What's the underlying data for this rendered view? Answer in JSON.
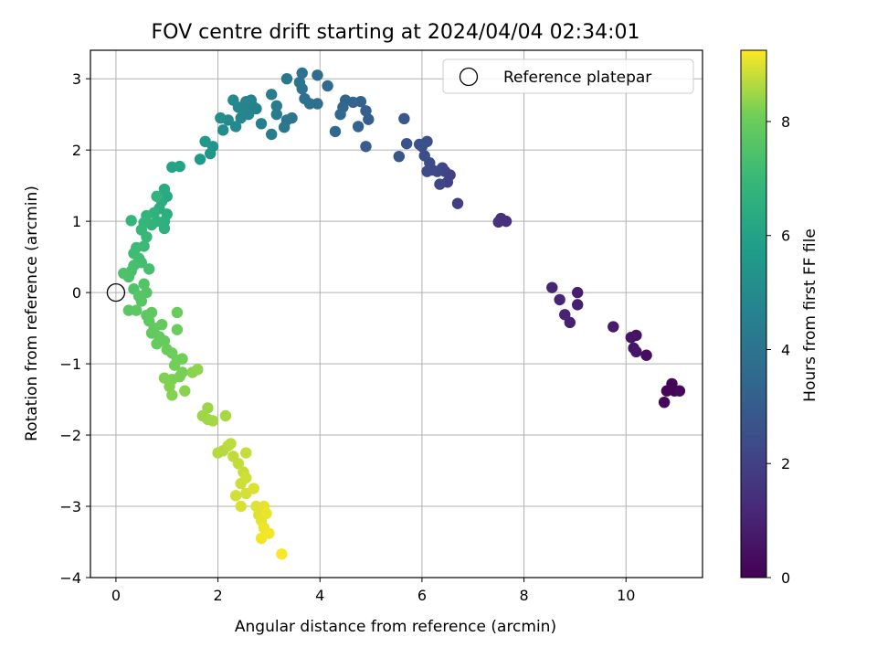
{
  "chart_data": {
    "type": "scatter",
    "title": "FOV centre drift starting at 2024/04/04 02:34:01",
    "xlabel": "Angular distance from reference (arcmin)",
    "ylabel": "Rotation from reference (arcmin)",
    "xlim": [
      -0.5,
      11.5
    ],
    "ylim": [
      -4.0,
      3.4
    ],
    "xticks": [
      0,
      2,
      4,
      6,
      8,
      10
    ],
    "yticks": [
      -4,
      -3,
      -2,
      -1,
      0,
      1,
      2,
      3
    ],
    "grid": true,
    "legend": {
      "position": "top-right",
      "entries": [
        "Reference platepar"
      ]
    },
    "reference_point": {
      "x": 0,
      "y": 0,
      "label": "Reference platepar"
    },
    "colorbar": {
      "label": "Hours from first FF file",
      "range": [
        0,
        9.25
      ],
      "ticks": [
        0,
        2,
        4,
        6,
        8
      ],
      "colormap": "viridis"
    },
    "points": [
      {
        "x": 10.95,
        "y": -1.38,
        "h": 0.05
      },
      {
        "x": 10.9,
        "y": -1.28,
        "h": 0.1
      },
      {
        "x": 10.8,
        "y": -1.38,
        "h": 0.15
      },
      {
        "x": 10.75,
        "y": -1.54,
        "h": 0.2
      },
      {
        "x": 11.05,
        "y": -1.38,
        "h": 0.25
      },
      {
        "x": 10.4,
        "y": -0.88,
        "h": 0.4
      },
      {
        "x": 10.2,
        "y": -0.6,
        "h": 0.5
      },
      {
        "x": 10.15,
        "y": -0.78,
        "h": 0.55
      },
      {
        "x": 10.1,
        "y": -0.63,
        "h": 0.6
      },
      {
        "x": 10.2,
        "y": -0.83,
        "h": 0.65
      },
      {
        "x": 9.75,
        "y": -0.48,
        "h": 0.75
      },
      {
        "x": 9.05,
        "y": 0.0,
        "h": 0.85
      },
      {
        "x": 9.05,
        "y": -0.17,
        "h": 0.9
      },
      {
        "x": 8.9,
        "y": -0.42,
        "h": 0.95
      },
      {
        "x": 8.8,
        "y": -0.31,
        "h": 1.0
      },
      {
        "x": 8.7,
        "y": -0.1,
        "h": 1.05
      },
      {
        "x": 8.55,
        "y": 0.07,
        "h": 1.1
      },
      {
        "x": 7.65,
        "y": 1.0,
        "h": 1.4
      },
      {
        "x": 7.55,
        "y": 1.04,
        "h": 1.45
      },
      {
        "x": 7.5,
        "y": 0.99,
        "h": 1.5
      },
      {
        "x": 6.7,
        "y": 1.25,
        "h": 1.9
      },
      {
        "x": 6.55,
        "y": 1.65,
        "h": 2.0
      },
      {
        "x": 6.5,
        "y": 1.55,
        "h": 2.05
      },
      {
        "x": 6.45,
        "y": 1.7,
        "h": 2.1
      },
      {
        "x": 6.4,
        "y": 1.75,
        "h": 2.15
      },
      {
        "x": 6.35,
        "y": 1.52,
        "h": 2.2
      },
      {
        "x": 6.3,
        "y": 1.7,
        "h": 2.25
      },
      {
        "x": 6.2,
        "y": 1.72,
        "h": 2.3
      },
      {
        "x": 6.1,
        "y": 1.7,
        "h": 2.35
      },
      {
        "x": 6.15,
        "y": 1.82,
        "h": 2.4
      },
      {
        "x": 6.05,
        "y": 1.92,
        "h": 2.45
      },
      {
        "x": 6.1,
        "y": 2.12,
        "h": 2.5
      },
      {
        "x": 6.0,
        "y": 2.05,
        "h": 2.55
      },
      {
        "x": 5.95,
        "y": 2.08,
        "h": 2.6
      },
      {
        "x": 5.7,
        "y": 2.09,
        "h": 2.7
      },
      {
        "x": 5.55,
        "y": 1.91,
        "h": 2.75
      },
      {
        "x": 5.65,
        "y": 2.44,
        "h": 2.8
      },
      {
        "x": 4.9,
        "y": 2.05,
        "h": 3.05
      },
      {
        "x": 4.95,
        "y": 2.43,
        "h": 3.1
      },
      {
        "x": 4.9,
        "y": 2.55,
        "h": 3.15
      },
      {
        "x": 4.8,
        "y": 2.68,
        "h": 3.2
      },
      {
        "x": 4.75,
        "y": 2.33,
        "h": 3.25
      },
      {
        "x": 4.65,
        "y": 2.67,
        "h": 3.3
      },
      {
        "x": 4.5,
        "y": 2.7,
        "h": 3.35
      },
      {
        "x": 4.45,
        "y": 2.6,
        "h": 3.4
      },
      {
        "x": 4.4,
        "y": 2.5,
        "h": 3.45
      },
      {
        "x": 4.3,
        "y": 2.26,
        "h": 3.5
      },
      {
        "x": 4.15,
        "y": 2.9,
        "h": 3.6
      },
      {
        "x": 3.95,
        "y": 3.05,
        "h": 3.7
      },
      {
        "x": 3.95,
        "y": 2.65,
        "h": 3.75
      },
      {
        "x": 3.8,
        "y": 2.65,
        "h": 3.8
      },
      {
        "x": 3.7,
        "y": 2.72,
        "h": 3.85
      },
      {
        "x": 3.65,
        "y": 2.86,
        "h": 3.9
      },
      {
        "x": 3.65,
        "y": 3.08,
        "h": 3.95
      },
      {
        "x": 3.6,
        "y": 2.95,
        "h": 4.0
      },
      {
        "x": 3.45,
        "y": 2.45,
        "h": 4.05
      },
      {
        "x": 3.35,
        "y": 2.42,
        "h": 4.1
      },
      {
        "x": 3.3,
        "y": 2.32,
        "h": 4.15
      },
      {
        "x": 3.35,
        "y": 3.0,
        "h": 4.2
      },
      {
        "x": 3.15,
        "y": 2.5,
        "h": 4.3
      },
      {
        "x": 3.15,
        "y": 2.62,
        "h": 4.35
      },
      {
        "x": 3.05,
        "y": 2.78,
        "h": 4.4
      },
      {
        "x": 3.05,
        "y": 2.22,
        "h": 4.45
      },
      {
        "x": 2.85,
        "y": 2.37,
        "h": 4.55
      },
      {
        "x": 2.7,
        "y": 2.6,
        "h": 4.6
      },
      {
        "x": 2.65,
        "y": 2.7,
        "h": 4.65
      },
      {
        "x": 2.6,
        "y": 2.5,
        "h": 4.7
      },
      {
        "x": 2.5,
        "y": 2.58,
        "h": 4.75
      },
      {
        "x": 2.45,
        "y": 2.45,
        "h": 4.8
      },
      {
        "x": 2.4,
        "y": 2.6,
        "h": 4.85
      },
      {
        "x": 2.35,
        "y": 2.33,
        "h": 4.9
      },
      {
        "x": 2.3,
        "y": 2.7,
        "h": 4.95
      },
      {
        "x": 2.2,
        "y": 2.42,
        "h": 5.0
      },
      {
        "x": 2.1,
        "y": 2.28,
        "h": 5.05
      },
      {
        "x": 2.05,
        "y": 2.45,
        "h": 5.1
      },
      {
        "x": 2.75,
        "y": 2.58,
        "h": 4.58
      },
      {
        "x": 2.55,
        "y": 2.68,
        "h": 4.72
      },
      {
        "x": 1.9,
        "y": 2.05,
        "h": 5.4
      },
      {
        "x": 1.85,
        "y": 1.95,
        "h": 5.5
      },
      {
        "x": 1.75,
        "y": 2.12,
        "h": 5.55
      },
      {
        "x": 1.65,
        "y": 1.87,
        "h": 5.6
      },
      {
        "x": 1.25,
        "y": 1.77,
        "h": 6.0
      },
      {
        "x": 1.1,
        "y": 1.76,
        "h": 6.05
      },
      {
        "x": 1.0,
        "y": 1.35,
        "h": 6.3
      },
      {
        "x": 0.95,
        "y": 1.45,
        "h": 6.35
      },
      {
        "x": 0.9,
        "y": 1.28,
        "h": 6.4
      },
      {
        "x": 0.85,
        "y": 1.18,
        "h": 6.45
      },
      {
        "x": 1.0,
        "y": 1.1,
        "h": 6.5
      },
      {
        "x": 0.95,
        "y": 1.0,
        "h": 6.55
      },
      {
        "x": 0.95,
        "y": 0.9,
        "h": 6.6
      },
      {
        "x": 0.8,
        "y": 1.0,
        "h": 6.65
      },
      {
        "x": 0.75,
        "y": 1.12,
        "h": 6.7
      },
      {
        "x": 0.7,
        "y": 0.95,
        "h": 6.75
      },
      {
        "x": 0.8,
        "y": 1.35,
        "h": 6.8
      },
      {
        "x": 0.6,
        "y": 1.08,
        "h": 6.85
      },
      {
        "x": 0.55,
        "y": 0.98,
        "h": 6.9
      },
      {
        "x": 0.5,
        "y": 0.88,
        "h": 6.95
      },
      {
        "x": 0.6,
        "y": 0.78,
        "h": 7.0
      },
      {
        "x": 0.55,
        "y": 0.65,
        "h": 7.05
      },
      {
        "x": 0.4,
        "y": 0.63,
        "h": 7.1
      },
      {
        "x": 0.35,
        "y": 0.55,
        "h": 7.15
      },
      {
        "x": 0.45,
        "y": 0.48,
        "h": 7.2
      },
      {
        "x": 0.5,
        "y": 0.42,
        "h": 7.25
      },
      {
        "x": 0.35,
        "y": 0.38,
        "h": 7.3
      },
      {
        "x": 0.3,
        "y": 0.3,
        "h": 7.35
      },
      {
        "x": 0.25,
        "y": 0.22,
        "h": 7.4
      },
      {
        "x": 0.15,
        "y": 0.27,
        "h": 7.45
      },
      {
        "x": 0.3,
        "y": 1.01,
        "h": 6.9
      },
      {
        "x": 0.65,
        "y": 0.33,
        "h": 7.3
      },
      {
        "x": 0.35,
        "y": 0.05,
        "h": 7.5
      },
      {
        "x": 0.55,
        "y": 0.12,
        "h": 7.55
      },
      {
        "x": 0.6,
        "y": 0.0,
        "h": 7.6
      },
      {
        "x": 0.45,
        "y": -0.05,
        "h": 7.62
      },
      {
        "x": 0.5,
        "y": -0.12,
        "h": 7.65
      },
      {
        "x": 0.25,
        "y": -0.25,
        "h": 7.7
      },
      {
        "x": 0.4,
        "y": -0.25,
        "h": 7.72
      },
      {
        "x": 0.6,
        "y": -0.32,
        "h": 7.75
      },
      {
        "x": 0.7,
        "y": -0.28,
        "h": 7.78
      },
      {
        "x": 0.65,
        "y": -0.4,
        "h": 7.8
      },
      {
        "x": 0.75,
        "y": -0.5,
        "h": 7.82
      },
      {
        "x": 0.7,
        "y": -0.57,
        "h": 7.85
      },
      {
        "x": 0.9,
        "y": -0.45,
        "h": 7.88
      },
      {
        "x": 0.85,
        "y": -0.62,
        "h": 7.9
      },
      {
        "x": 0.8,
        "y": -0.72,
        "h": 7.92
      },
      {
        "x": 0.95,
        "y": -0.68,
        "h": 7.95
      },
      {
        "x": 1.2,
        "y": -0.28,
        "h": 7.97
      },
      {
        "x": 1.2,
        "y": -0.52,
        "h": 8.0
      },
      {
        "x": 1.0,
        "y": -0.8,
        "h": 8.02
      },
      {
        "x": 1.1,
        "y": -0.85,
        "h": 8.05
      },
      {
        "x": 1.2,
        "y": -0.95,
        "h": 8.08
      },
      {
        "x": 1.3,
        "y": -0.93,
        "h": 8.1
      },
      {
        "x": 1.15,
        "y": -1.02,
        "h": 8.12
      },
      {
        "x": 1.3,
        "y": -1.12,
        "h": 8.15
      },
      {
        "x": 1.25,
        "y": -1.18,
        "h": 8.17
      },
      {
        "x": 1.1,
        "y": -1.22,
        "h": 8.2
      },
      {
        "x": 0.95,
        "y": -1.2,
        "h": 8.22
      },
      {
        "x": 1.05,
        "y": -1.32,
        "h": 8.25
      },
      {
        "x": 1.1,
        "y": -1.44,
        "h": 8.27
      },
      {
        "x": 1.35,
        "y": -1.38,
        "h": 8.3
      },
      {
        "x": 1.5,
        "y": -1.12,
        "h": 8.32
      },
      {
        "x": 1.6,
        "y": -1.08,
        "h": 8.35
      },
      {
        "x": 1.8,
        "y": -1.62,
        "h": 8.45
      },
      {
        "x": 1.7,
        "y": -1.73,
        "h": 8.48
      },
      {
        "x": 1.8,
        "y": -1.78,
        "h": 8.5
      },
      {
        "x": 1.9,
        "y": -1.8,
        "h": 8.52
      },
      {
        "x": 2.15,
        "y": -1.73,
        "h": 8.55
      },
      {
        "x": 2.0,
        "y": -2.25,
        "h": 8.65
      },
      {
        "x": 2.1,
        "y": -2.22,
        "h": 8.67
      },
      {
        "x": 2.2,
        "y": -2.15,
        "h": 8.7
      },
      {
        "x": 2.25,
        "y": -2.12,
        "h": 8.72
      },
      {
        "x": 2.3,
        "y": -2.3,
        "h": 8.75
      },
      {
        "x": 2.4,
        "y": -2.4,
        "h": 8.77
      },
      {
        "x": 2.55,
        "y": -2.25,
        "h": 8.8
      },
      {
        "x": 2.5,
        "y": -2.52,
        "h": 8.82
      },
      {
        "x": 2.45,
        "y": -2.68,
        "h": 8.85
      },
      {
        "x": 2.55,
        "y": -2.6,
        "h": 8.87
      },
      {
        "x": 2.35,
        "y": -2.85,
        "h": 8.9
      },
      {
        "x": 2.55,
        "y": -2.82,
        "h": 8.92
      },
      {
        "x": 2.45,
        "y": -3.0,
        "h": 8.95
      },
      {
        "x": 2.7,
        "y": -2.75,
        "h": 8.97
      },
      {
        "x": 2.75,
        "y": -3.0,
        "h": 9.0
      },
      {
        "x": 2.8,
        "y": -3.12,
        "h": 9.02
      },
      {
        "x": 2.85,
        "y": -3.2,
        "h": 9.05
      },
      {
        "x": 2.9,
        "y": -3.0,
        "h": 9.07
      },
      {
        "x": 2.95,
        "y": -3.1,
        "h": 9.1
      },
      {
        "x": 2.9,
        "y": -3.3,
        "h": 9.12
      },
      {
        "x": 2.85,
        "y": -3.45,
        "h": 9.15
      },
      {
        "x": 3.0,
        "y": -3.38,
        "h": 9.17
      },
      {
        "x": 3.25,
        "y": -3.67,
        "h": 9.22
      }
    ]
  }
}
